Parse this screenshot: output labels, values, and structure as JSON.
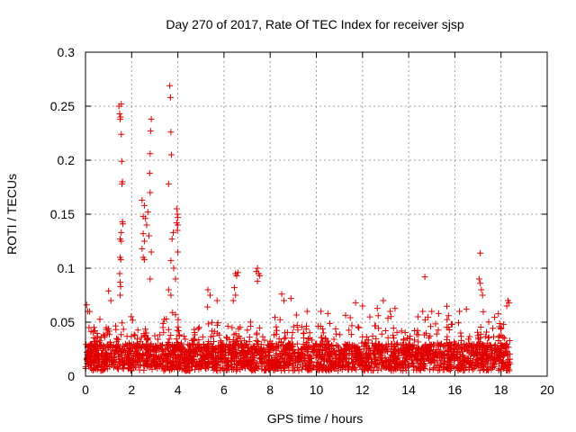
{
  "chart_data": {
    "type": "scatter",
    "title": "Day 270 of 2017, Rate Of TEC Index for receiver sjsp",
    "xlabel": "GPS time / hours",
    "ylabel": "ROTI / TECUs",
    "xlim": [
      0,
      20
    ],
    "ylim": [
      0,
      0.3
    ],
    "x_ticks": [
      0,
      2,
      4,
      6,
      8,
      10,
      12,
      14,
      16,
      18,
      20
    ],
    "x_tick_labels": [
      "0",
      "2",
      "4",
      "6",
      "8",
      "10",
      "12",
      "14",
      "16",
      "18",
      "20"
    ],
    "y_ticks": [
      0,
      0.05,
      0.1,
      0.15,
      0.2,
      0.25,
      0.3
    ],
    "y_tick_labels": [
      "0",
      "0.05",
      "0.1",
      "0.15",
      "0.2",
      "0.25",
      "0.3"
    ],
    "grid": true,
    "marker": "plus",
    "series_color": "#e00000",
    "series": [
      {
        "name": "ROTI",
        "x_range": [
          0,
          18.4
        ],
        "baseline_typical": [
          0.005,
          0.03
        ],
        "points": [
          [
            0.05,
            0.066
          ],
          [
            0.1,
            0.06
          ],
          [
            0.15,
            0.045
          ],
          [
            0.3,
            0.02
          ],
          [
            0.9,
            0.045
          ],
          [
            1.0,
            0.079
          ],
          [
            1.1,
            0.07
          ],
          [
            1.45,
            0.25
          ],
          [
            1.48,
            0.243
          ],
          [
            1.5,
            0.238
          ],
          [
            1.52,
            0.24
          ],
          [
            1.55,
            0.252
          ],
          [
            1.55,
            0.224
          ],
          [
            1.57,
            0.199
          ],
          [
            1.6,
            0.18
          ],
          [
            1.58,
            0.178
          ],
          [
            1.6,
            0.143
          ],
          [
            1.62,
            0.141
          ],
          [
            1.55,
            0.133
          ],
          [
            1.5,
            0.127
          ],
          [
            1.55,
            0.125
          ],
          [
            1.5,
            0.11
          ],
          [
            1.53,
            0.108
          ],
          [
            1.48,
            0.095
          ],
          [
            1.5,
            0.087
          ],
          [
            1.52,
            0.083
          ],
          [
            1.5,
            0.075
          ],
          [
            2.45,
            0.163
          ],
          [
            2.55,
            0.158
          ],
          [
            2.5,
            0.148
          ],
          [
            2.6,
            0.146
          ],
          [
            2.65,
            0.14
          ],
          [
            2.5,
            0.132
          ],
          [
            2.55,
            0.125
          ],
          [
            2.45,
            0.118
          ],
          [
            2.5,
            0.11
          ],
          [
            2.55,
            0.108
          ],
          [
            2.85,
            0.238
          ],
          [
            2.82,
            0.227
          ],
          [
            2.8,
            0.206
          ],
          [
            2.78,
            0.188
          ],
          [
            2.8,
            0.17
          ],
          [
            2.7,
            0.152
          ],
          [
            2.75,
            0.13
          ],
          [
            2.85,
            0.115
          ],
          [
            2.8,
            0.09
          ],
          [
            3.6,
            0.178
          ],
          [
            3.65,
            0.269
          ],
          [
            3.68,
            0.258
          ],
          [
            3.7,
            0.226
          ],
          [
            3.72,
            0.205
          ],
          [
            3.8,
            0.133
          ],
          [
            3.75,
            0.127
          ],
          [
            3.7,
            0.107
          ],
          [
            3.82,
            0.1
          ],
          [
            3.95,
            0.155
          ],
          [
            3.98,
            0.15
          ],
          [
            4.0,
            0.147
          ],
          [
            3.95,
            0.142
          ],
          [
            4.0,
            0.14
          ],
          [
            3.98,
            0.135
          ],
          [
            4.0,
            0.115
          ],
          [
            3.9,
            0.09
          ],
          [
            3.6,
            0.08
          ],
          [
            3.7,
            0.075
          ],
          [
            5.3,
            0.08
          ],
          [
            5.4,
            0.075
          ],
          [
            5.7,
            0.07
          ],
          [
            6.5,
            0.095
          ],
          [
            6.55,
            0.093
          ],
          [
            6.6,
            0.096
          ],
          [
            6.45,
            0.082
          ],
          [
            6.5,
            0.075
          ],
          [
            6.4,
            0.07
          ],
          [
            7.4,
            0.097
          ],
          [
            7.45,
            0.1
          ],
          [
            7.5,
            0.095
          ],
          [
            7.55,
            0.093
          ],
          [
            7.45,
            0.088
          ],
          [
            8.5,
            0.076
          ],
          [
            8.6,
            0.07
          ],
          [
            8.9,
            0.072
          ],
          [
            9.6,
            0.06
          ],
          [
            10.2,
            0.06
          ],
          [
            10.5,
            0.058
          ],
          [
            11.7,
            0.068
          ],
          [
            12.0,
            0.065
          ],
          [
            12.9,
            0.07
          ],
          [
            13.2,
            0.06
          ],
          [
            14.4,
            0.055
          ],
          [
            14.7,
            0.092
          ],
          [
            15.0,
            0.06
          ],
          [
            15.3,
            0.058
          ],
          [
            16.2,
            0.06
          ],
          [
            16.5,
            0.062
          ],
          [
            17.1,
            0.114
          ],
          [
            17.05,
            0.09
          ],
          [
            17.1,
            0.086
          ],
          [
            17.15,
            0.08
          ],
          [
            17.2,
            0.075
          ],
          [
            18.3,
            0.07
          ],
          [
            18.35,
            0.068
          ],
          [
            18.25,
            0.065
          ]
        ]
      }
    ]
  }
}
